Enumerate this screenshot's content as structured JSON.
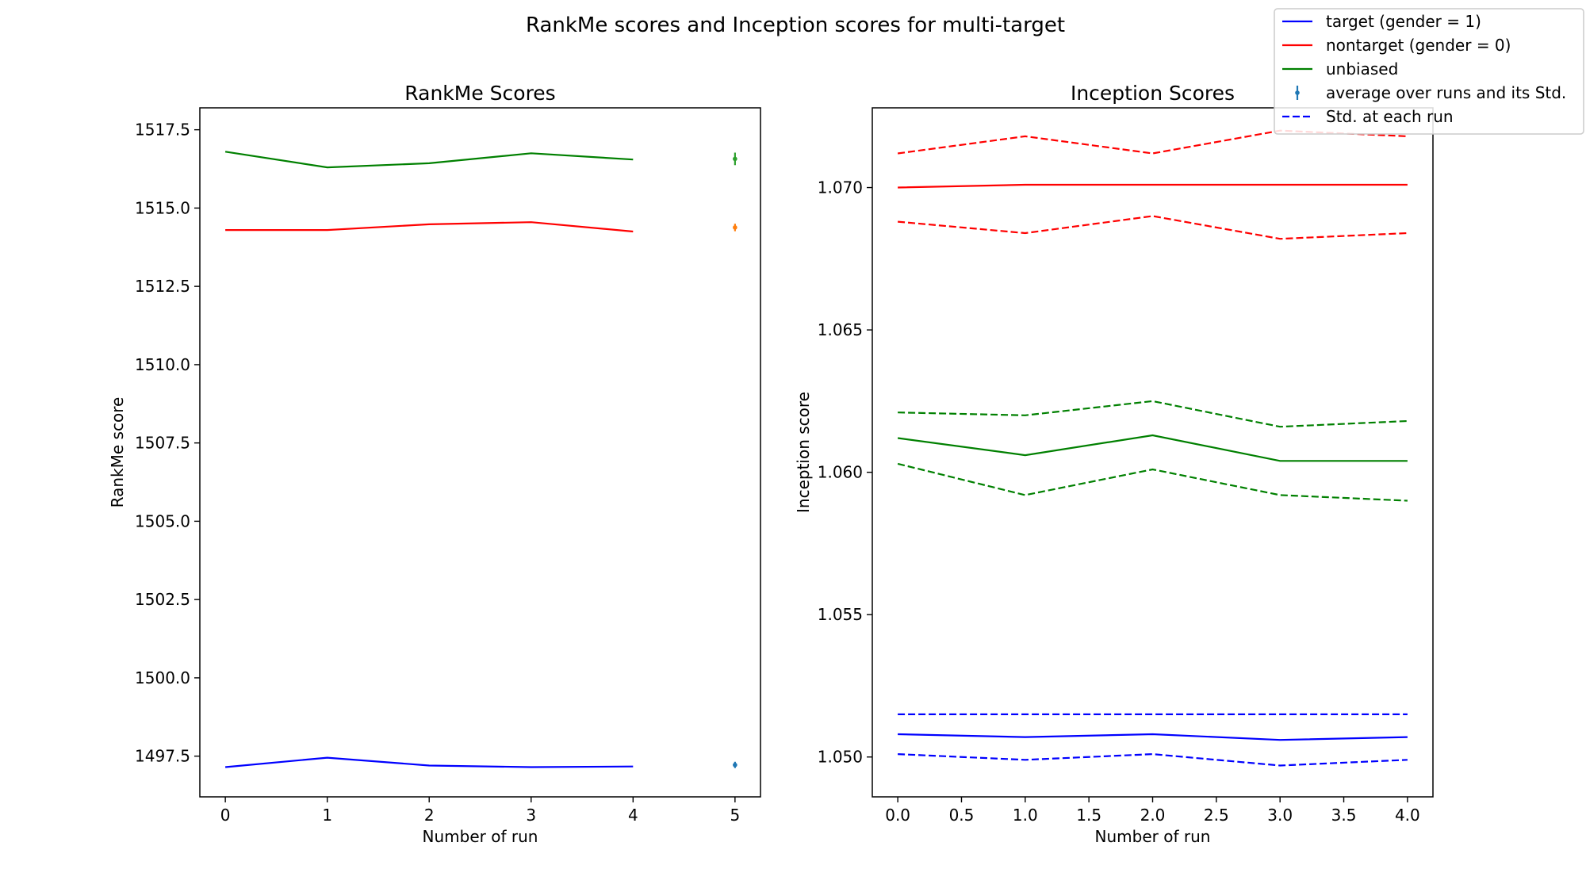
{
  "figure": {
    "suptitle": "RankMe scores and Inception scores for multi-target"
  },
  "legend": {
    "placement": "top-right",
    "entries": [
      {
        "label": "target (gender = 1)",
        "style": "solid",
        "color": "#0000ff"
      },
      {
        "label": "nontarget (gender = 0)",
        "style": "solid",
        "color": "#ff0000"
      },
      {
        "label": "unbiased",
        "style": "solid",
        "color": "#008000"
      },
      {
        "label": "average over runs and its Std.",
        "style": "errorbar",
        "color": "#1f77b4"
      },
      {
        "label": "Std. at each run",
        "style": "dashed",
        "color": "#0000ff"
      }
    ]
  },
  "chart_data": [
    {
      "type": "line",
      "title": "RankMe Scores",
      "xlabel": "Number of run",
      "ylabel": "RankMe score",
      "xlim": [
        -0.25,
        5.25
      ],
      "ylim": [
        1496.2,
        1518.2
      ],
      "xticks": [
        0,
        1,
        2,
        3,
        4,
        5
      ],
      "xtick_labels": [
        "0",
        "1",
        "2",
        "3",
        "4",
        "5"
      ],
      "yticks": [
        1497.5,
        1500.0,
        1502.5,
        1505.0,
        1507.5,
        1510.0,
        1512.5,
        1515.0,
        1517.5
      ],
      "ytick_labels": [
        "1497.5",
        "1500.0",
        "1502.5",
        "1505.0",
        "1507.5",
        "1510.0",
        "1512.5",
        "1515.0",
        "1517.5"
      ],
      "grid": false,
      "x": [
        0,
        1,
        2,
        3,
        4
      ],
      "series": [
        {
          "color": "#0000ff",
          "style": "solid",
          "values": [
            1497.15,
            1497.45,
            1497.2,
            1497.15,
            1497.17
          ]
        },
        {
          "color": "#ff0000",
          "style": "solid",
          "values": [
            1514.3,
            1514.3,
            1514.48,
            1514.55,
            1514.25
          ]
        },
        {
          "color": "#008000",
          "style": "solid",
          "values": [
            1516.8,
            1516.3,
            1516.43,
            1516.75,
            1516.55
          ]
        }
      ],
      "errorbars": [
        {
          "x": 5,
          "y": 1516.57,
          "std": 0.2,
          "color": "#2ca02c"
        },
        {
          "x": 5,
          "y": 1514.38,
          "std": 0.12,
          "color": "#ff7f0e"
        },
        {
          "x": 5,
          "y": 1497.22,
          "std": 0.1,
          "color": "#1f77b4"
        }
      ]
    },
    {
      "type": "line",
      "title": "Inception Scores",
      "xlabel": "Number of run",
      "ylabel": "Inception score",
      "xlim": [
        -0.2,
        4.2
      ],
      "ylim": [
        1.0486,
        1.0728
      ],
      "xticks": [
        0,
        0.5,
        1,
        1.5,
        2,
        2.5,
        3,
        3.5,
        4
      ],
      "xtick_labels": [
        "0.0",
        "0.5",
        "1.0",
        "1.5",
        "2.0",
        "2.5",
        "3.0",
        "3.5",
        "4.0"
      ],
      "yticks": [
        1.05,
        1.055,
        1.06,
        1.065,
        1.07
      ],
      "ytick_labels": [
        "1.050",
        "1.055",
        "1.060",
        "1.065",
        "1.070"
      ],
      "grid": false,
      "x": [
        0,
        1,
        2,
        3,
        4
      ],
      "series": [
        {
          "color": "#0000ff",
          "style": "solid",
          "values": [
            1.0508,
            1.0507,
            1.0508,
            1.0506,
            1.0507
          ]
        },
        {
          "color": "#0000ff",
          "style": "dashed",
          "values": [
            1.0515,
            1.0515,
            1.0515,
            1.0515,
            1.0515
          ]
        },
        {
          "color": "#0000ff",
          "style": "dashed",
          "values": [
            1.0501,
            1.0499,
            1.0501,
            1.0497,
            1.0499
          ]
        },
        {
          "color": "#ff0000",
          "style": "solid",
          "values": [
            1.07,
            1.0701,
            1.0701,
            1.0701,
            1.0701
          ]
        },
        {
          "color": "#ff0000",
          "style": "dashed",
          "values": [
            1.0712,
            1.0718,
            1.0712,
            1.072,
            1.0718
          ]
        },
        {
          "color": "#ff0000",
          "style": "dashed",
          "values": [
            1.0688,
            1.0684,
            1.069,
            1.0682,
            1.0684
          ]
        },
        {
          "color": "#008000",
          "style": "solid",
          "values": [
            1.0612,
            1.0606,
            1.0613,
            1.0604,
            1.0604
          ]
        },
        {
          "color": "#008000",
          "style": "dashed",
          "values": [
            1.0621,
            1.062,
            1.0625,
            1.0616,
            1.0618
          ]
        },
        {
          "color": "#008000",
          "style": "dashed",
          "values": [
            1.0603,
            1.0592,
            1.0601,
            1.0592,
            1.059
          ]
        }
      ],
      "errorbars": []
    }
  ]
}
